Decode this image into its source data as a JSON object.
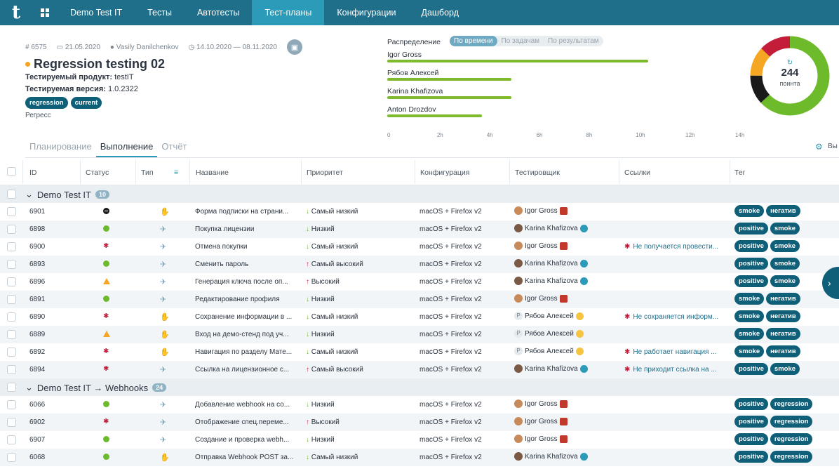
{
  "nav": {
    "logo": "t",
    "items": [
      "Demo Test IT",
      "Тесты",
      "Автотесты",
      "Тест-планы",
      "Конфигурации",
      "Дашборд"
    ],
    "active_index": 3
  },
  "plan": {
    "id": "# 6575",
    "date": "21.05.2020",
    "author": "Vasily Danilchenkov",
    "period": "14.10.2020 — 08.11.2020",
    "title": "Regression testing 02",
    "product_label": "Тестируемый продукт:",
    "product_value": "testIT",
    "version_label": "Тестируемая версия:",
    "version_value": "1.0.2322",
    "tags": [
      "regression",
      "current"
    ],
    "tag_type": "Регресс"
  },
  "distribution": {
    "label": "Распределение",
    "modes": [
      "По времени",
      "По задачам",
      "По результатам"
    ],
    "active_mode": 0,
    "people": [
      {
        "name": "Igor Gross",
        "hours": 10.5
      },
      {
        "name": "Рябов Алексей",
        "hours": 5.0
      },
      {
        "name": "Karina Khafizova",
        "hours": 5.0
      },
      {
        "name": "Anton Drozdov",
        "hours": 3.8
      }
    ],
    "ticks": [
      "0",
      "2h",
      "4h",
      "6h",
      "8h",
      "10h",
      "12h",
      "14h"
    ],
    "max_hours": 14
  },
  "donut": {
    "count": "244",
    "unit": "поинта",
    "refresh_icon": "refresh-icon",
    "segments": [
      {
        "color": "#6dbb2b",
        "value": 0.63
      },
      {
        "color": "#1a1a1a",
        "value": 0.12
      },
      {
        "color": "#f5a623",
        "value": 0.12
      },
      {
        "color": "#c41d3a",
        "value": 0.13
      }
    ]
  },
  "tabs": [
    "Планирование",
    "Выполнение",
    "Отчёт"
  ],
  "active_tab": 1,
  "toolbar_cut": "Вы",
  "table": {
    "headers": {
      "id": "ID",
      "status": "Статус",
      "type": "Тип",
      "name": "Название",
      "priority": "Приоритет",
      "config": "Конфигурация",
      "tester": "Тестировщик",
      "links": "Ссылки",
      "tags": "Тег"
    },
    "groups": [
      {
        "title": "Demo Test IT",
        "count": "10"
      },
      {
        "title": "Demo Test IT → Webhooks",
        "count": "24"
      }
    ],
    "rows": [
      {
        "id": "6901",
        "status": "blocked",
        "type": "manual",
        "name": "Форма подписки на страни...",
        "prio_dir": "down",
        "prio": "Самый низкий",
        "config": "macOS + Firefox v2",
        "tester": "Igor Gross",
        "av": "ig",
        "link": "",
        "tags": [
          "smoke",
          "негатив"
        ]
      },
      {
        "id": "6898",
        "status": "passed",
        "type": "auto",
        "name": "Покупка лицензии",
        "prio_dir": "down",
        "prio": "Низкий",
        "config": "macOS + Firefox v2",
        "tester": "Karina Khafizova",
        "av": "kk",
        "link": "",
        "tags": [
          "positive",
          "smoke"
        ]
      },
      {
        "id": "6900",
        "status": "failed",
        "type": "auto",
        "name": "Отмена покупки",
        "prio_dir": "down",
        "prio": "Самый низкий",
        "config": "macOS + Firefox v2",
        "tester": "Igor Gross",
        "av": "ig",
        "link": "Не получается провести...",
        "tags": [
          "positive",
          "smoke"
        ]
      },
      {
        "id": "6893",
        "status": "passed",
        "type": "auto",
        "name": "Сменить пароль",
        "prio_dir": "up",
        "prio": "Самый высокий",
        "config": "macOS + Firefox v2",
        "tester": "Karina Khafizova",
        "av": "kk",
        "link": "",
        "tags": [
          "positive",
          "smoke"
        ]
      },
      {
        "id": "6896",
        "status": "warning",
        "type": "auto",
        "name": "Генерация ключа после оп...",
        "prio_dir": "up",
        "prio": "Высокий",
        "config": "macOS + Firefox v2",
        "tester": "Karina Khafizova",
        "av": "kk",
        "link": "",
        "tags": [
          "positive",
          "smoke"
        ]
      },
      {
        "id": "6891",
        "status": "passed",
        "type": "auto",
        "name": "Редактирование профиля",
        "prio_dir": "down",
        "prio": "Низкий",
        "config": "macOS + Firefox v2",
        "tester": "Igor Gross",
        "av": "ig",
        "link": "",
        "tags": [
          "smoke",
          "негатив"
        ]
      },
      {
        "id": "6890",
        "status": "failed",
        "type": "manual",
        "name": "Сохранение информации в ...",
        "prio_dir": "down",
        "prio": "Самый низкий",
        "config": "macOS + Firefox v2",
        "tester": "Рябов Алексей",
        "av": "rb",
        "link": "Не сохраняется информ...",
        "tags": [
          "smoke",
          "негатив"
        ]
      },
      {
        "id": "6889",
        "status": "warning",
        "type": "manual",
        "name": "Вход на демо-стенд под уч...",
        "prio_dir": "down",
        "prio": "Низкий",
        "config": "macOS + Firefox v2",
        "tester": "Рябов Алексей",
        "av": "rb",
        "link": "",
        "tags": [
          "smoke",
          "негатив"
        ]
      },
      {
        "id": "6892",
        "status": "failed",
        "type": "manual",
        "name": "Навигация по разделу Мате...",
        "prio_dir": "down",
        "prio": "Самый низкий",
        "config": "macOS + Firefox v2",
        "tester": "Рябов Алексей",
        "av": "rb",
        "link": "Не работает навигация ...",
        "tags": [
          "smoke",
          "негатив"
        ]
      },
      {
        "id": "6894",
        "status": "failed",
        "type": "auto",
        "name": "Ссылка на лицензионное с...",
        "prio_dir": "up",
        "prio": "Самый высокий",
        "config": "macOS + Firefox v2",
        "tester": "Karina Khafizova",
        "av": "kk",
        "link": "Не приходит ссылка на ...",
        "tags": [
          "positive",
          "smoke"
        ]
      },
      {
        "id": "6066",
        "status": "passed",
        "type": "auto",
        "name": "Добавление webhook на со...",
        "prio_dir": "down",
        "prio": "Низкий",
        "config": "macOS + Firefox v2",
        "tester": "Igor Gross",
        "av": "ig",
        "link": "",
        "tags": [
          "positive",
          "regression"
        ]
      },
      {
        "id": "6902",
        "status": "failed",
        "type": "auto",
        "name": "Отображение спец.переме...",
        "prio_dir": "up",
        "prio": "Высокий",
        "config": "macOS + Firefox v2",
        "tester": "Igor Gross",
        "av": "ig",
        "link": "",
        "tags": [
          "positive",
          "regression"
        ]
      },
      {
        "id": "6907",
        "status": "passed",
        "type": "auto",
        "name": "Создание и проверка webh...",
        "prio_dir": "down",
        "prio": "Низкий",
        "config": "macOS + Firefox v2",
        "tester": "Igor Gross",
        "av": "ig",
        "link": "",
        "tags": [
          "positive",
          "regression"
        ]
      },
      {
        "id": "6068",
        "status": "passed",
        "type": "manual",
        "name": "Отправка Webhook POST за...",
        "prio_dir": "down",
        "prio": "Самый низкий",
        "config": "macOS + Firefox v2",
        "tester": "Karina Khafizova",
        "av": "kk",
        "link": "",
        "tags": [
          "positive",
          "regression"
        ]
      }
    ]
  }
}
